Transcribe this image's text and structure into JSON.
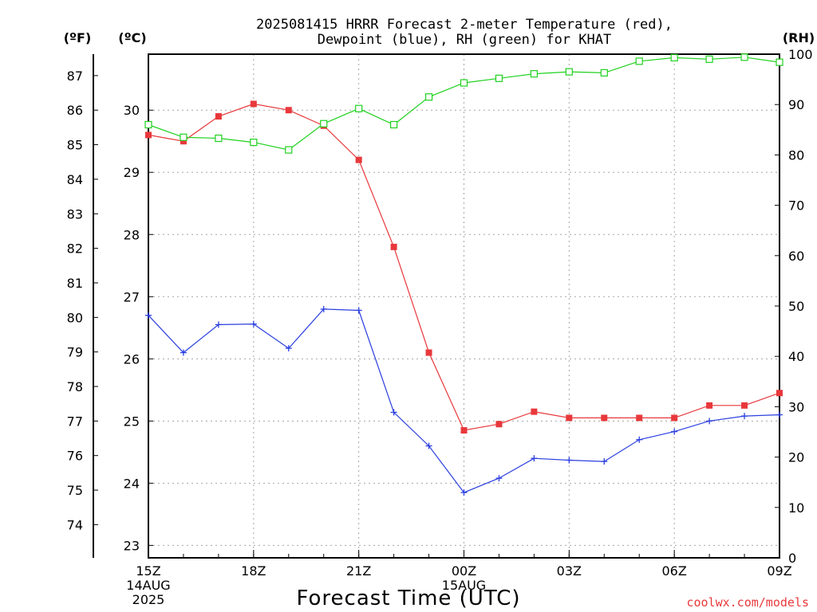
{
  "title_line1": "2025081415 HRRR Forecast 2-meter Temperature (red),",
  "title_line2": "Dewpoint (blue), RH (green) for KHAT",
  "unit_f": "(ºF)",
  "unit_c": "(ºC)",
  "unit_rh": "(RH)",
  "xlabel": "Forecast Time (UTC)",
  "credit": "coolwx.com/models",
  "colors": {
    "temperature": "#e8383b",
    "dewpoint": "#2b3fe0",
    "rh": "#1fd11f"
  },
  "chart_data": {
    "type": "line",
    "x_unit": "forecast hour from 15Z 14AUG2025",
    "x": [
      0,
      1,
      2,
      3,
      4,
      5,
      6,
      7,
      8,
      9,
      10,
      11,
      12,
      13,
      14,
      15,
      16,
      17,
      18
    ],
    "x_ticks": [
      {
        "x": 0,
        "lines": [
          "15Z",
          "14AUG",
          "2025"
        ]
      },
      {
        "x": 3,
        "lines": [
          "18Z"
        ]
      },
      {
        "x": 6,
        "lines": [
          "21Z"
        ]
      },
      {
        "x": 9,
        "lines": [
          "00Z",
          "15AUG"
        ]
      },
      {
        "x": 12,
        "lines": [
          "03Z"
        ]
      },
      {
        "x": 15,
        "lines": [
          "06Z"
        ]
      },
      {
        "x": 18,
        "lines": [
          "09Z"
        ]
      }
    ],
    "xlim": [
      0,
      18
    ],
    "celsius_axis": {
      "ticks": [
        23,
        24,
        25,
        26,
        27,
        28,
        29,
        30
      ],
      "range": [
        22.8,
        30.9
      ]
    },
    "fahrenheit_ticks": [
      74,
      75,
      76,
      77,
      78,
      79,
      80,
      81,
      82,
      83,
      84,
      85,
      86,
      87
    ],
    "rh_axis": {
      "ticks": [
        0,
        10,
        20,
        30,
        40,
        50,
        60,
        70,
        80,
        90,
        100
      ],
      "range": [
        0,
        100
      ]
    },
    "grid": true,
    "series": [
      {
        "key": "temperature",
        "unit": "C",
        "values": [
          29.6,
          29.5,
          29.9,
          30.1,
          30.0,
          29.75,
          29.2,
          27.8,
          26.1,
          24.85,
          24.95,
          25.15,
          25.05,
          25.05,
          25.05,
          25.05,
          25.25,
          25.25,
          25.45
        ]
      },
      {
        "key": "dewpoint",
        "unit": "C",
        "values": [
          26.7,
          26.1,
          26.55,
          26.56,
          26.17,
          26.8,
          26.78,
          25.14,
          24.6,
          23.85,
          24.08,
          24.4,
          24.37,
          24.35,
          24.7,
          24.83,
          25.0,
          25.08,
          25.1
        ]
      },
      {
        "key": "rh",
        "unit": "%",
        "values": [
          86,
          83.5,
          83.3,
          82.5,
          81,
          86.2,
          89.2,
          86,
          91.5,
          94.3,
          95.2,
          96.1,
          96.5,
          96.3,
          98.6,
          99.3,
          99.0,
          99.4,
          98.4
        ]
      }
    ]
  }
}
